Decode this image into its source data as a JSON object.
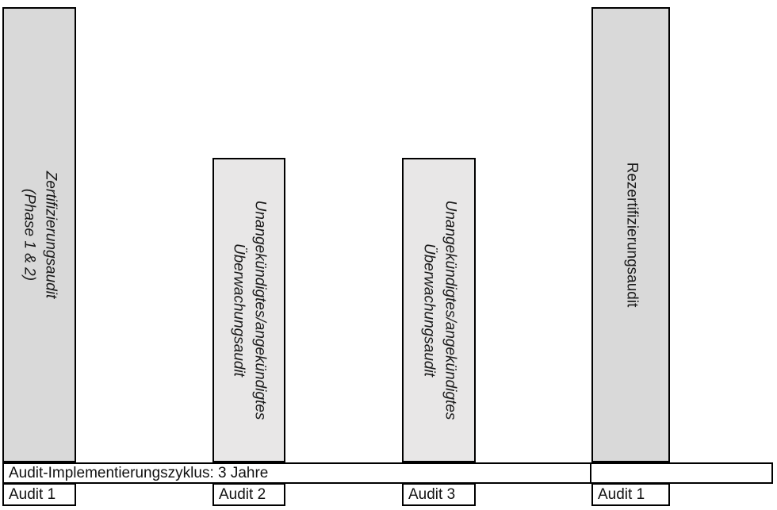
{
  "title": "Audit-Implementierungszyklus Diagramm",
  "colors": {
    "background": "#ffffff",
    "bar_dark_fill": "#d9d9d9",
    "bar_light_fill": "#e8e7e7",
    "border": "#000000"
  },
  "bars": [
    {
      "name": "zertifizierungsaudit",
      "line1": "Zertifizierungsaudit",
      "line2": "(Phase 1 & 2)",
      "style": "dark",
      "italic": true
    },
    {
      "name": "ueberwachungsaudit-1",
      "line1": "Unangekündigtes/angekündigtes",
      "line2": "Überwachungsaudit",
      "style": "light",
      "italic": true
    },
    {
      "name": "ueberwachungsaudit-2",
      "line1": "Unangekündigtes/angekündigtes",
      "line2": "Überwachungsaudit",
      "style": "light",
      "italic": true
    },
    {
      "name": "rezertifizierungsaudit",
      "line1": "Rezertifizierungsaudit",
      "line2": "",
      "style": "dark",
      "italic": false
    }
  ],
  "cycle_band": {
    "label": "Audit-Implementierungszyklus: 3 Jahre"
  },
  "audit_labels": [
    {
      "label": "Audit 1"
    },
    {
      "label": "Audit 2"
    },
    {
      "label": "Audit 3"
    },
    {
      "label": "Audit 1"
    }
  ]
}
